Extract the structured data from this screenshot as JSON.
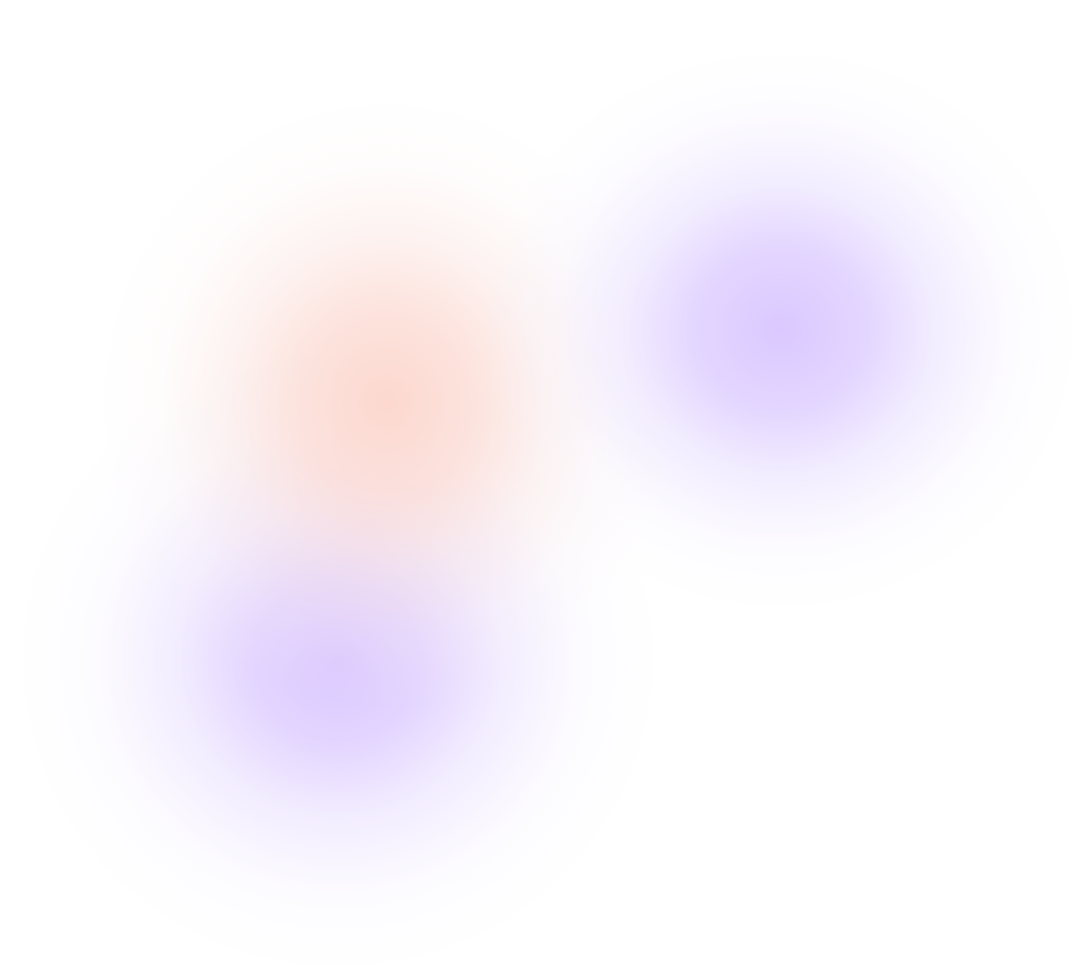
{
  "background": {
    "base_color": "#ffffff",
    "blobs": [
      {
        "name": "peach-blob",
        "color": "#fcd6cc"
      },
      {
        "name": "lavender-blob-right",
        "color": "#dbc8ff"
      },
      {
        "name": "lavender-blob-left",
        "color": "#dac7ff"
      }
    ]
  }
}
